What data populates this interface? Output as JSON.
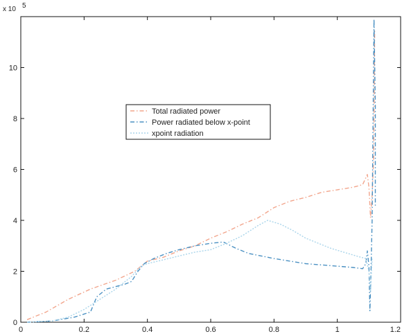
{
  "chart_data": {
    "type": "line",
    "title": "",
    "xlabel": "",
    "ylabel": "",
    "y_exponent_label": "x 10",
    "y_exponent_power": "5",
    "xlim": [
      0,
      1.2
    ],
    "ylim": [
      0,
      12
    ],
    "x_ticks": [
      {
        "value": 0,
        "label": "0"
      },
      {
        "value": 0.2,
        "label": "0.2"
      },
      {
        "value": 0.4,
        "label": "0.4"
      },
      {
        "value": 0.6,
        "label": "0.6"
      },
      {
        "value": 0.8,
        "label": "0.8"
      },
      {
        "value": 1.0,
        "label": "1"
      },
      {
        "value": 1.2,
        "label": "1.2"
      }
    ],
    "y_ticks": [
      {
        "value": 0,
        "label": "0"
      },
      {
        "value": 2,
        "label": "2"
      },
      {
        "value": 4,
        "label": "4"
      },
      {
        "value": 6,
        "label": "6"
      },
      {
        "value": 8,
        "label": "8"
      },
      {
        "value": 10,
        "label": "10"
      }
    ],
    "grid": false,
    "legend_position": "center-left",
    "series": [
      {
        "name": "Total radiated power",
        "color": "#f2a58c",
        "dash": "6,3,1.5,3",
        "points": [
          [
            0.02,
            0.1
          ],
          [
            0.08,
            0.4
          ],
          [
            0.15,
            0.9
          ],
          [
            0.22,
            1.3
          ],
          [
            0.3,
            1.65
          ],
          [
            0.36,
            2.0
          ],
          [
            0.4,
            2.4
          ],
          [
            0.45,
            2.55
          ],
          [
            0.5,
            2.8
          ],
          [
            0.55,
            3.0
          ],
          [
            0.6,
            3.3
          ],
          [
            0.65,
            3.55
          ],
          [
            0.7,
            3.85
          ],
          [
            0.75,
            4.1
          ],
          [
            0.8,
            4.5
          ],
          [
            0.85,
            4.75
          ],
          [
            0.9,
            4.9
          ],
          [
            0.95,
            5.1
          ],
          [
            1.0,
            5.2
          ],
          [
            1.05,
            5.3
          ],
          [
            1.08,
            5.4
          ],
          [
            1.095,
            5.8
          ],
          [
            1.1,
            5.3
          ],
          [
            1.105,
            4.1
          ],
          [
            1.11,
            5.0
          ],
          [
            1.115,
            6.5
          ],
          [
            1.118,
            11.5
          ]
        ]
      },
      {
        "name": "Power radiated below x-point",
        "color": "#4a90c2",
        "dash": "6,3,1.5,3",
        "points": [
          [
            0.02,
            0.0
          ],
          [
            0.1,
            0.05
          ],
          [
            0.17,
            0.2
          ],
          [
            0.22,
            0.4
          ],
          [
            0.24,
            1.0
          ],
          [
            0.27,
            1.3
          ],
          [
            0.3,
            1.4
          ],
          [
            0.33,
            1.5
          ],
          [
            0.35,
            1.6
          ],
          [
            0.37,
            2.0
          ],
          [
            0.39,
            2.3
          ],
          [
            0.42,
            2.5
          ],
          [
            0.46,
            2.7
          ],
          [
            0.5,
            2.85
          ],
          [
            0.55,
            3.0
          ],
          [
            0.6,
            3.1
          ],
          [
            0.64,
            3.15
          ],
          [
            0.68,
            2.9
          ],
          [
            0.72,
            2.7
          ],
          [
            0.76,
            2.6
          ],
          [
            0.8,
            2.5
          ],
          [
            0.85,
            2.4
          ],
          [
            0.9,
            2.3
          ],
          [
            0.95,
            2.25
          ],
          [
            1.0,
            2.2
          ],
          [
            1.05,
            2.15
          ],
          [
            1.08,
            2.1
          ],
          [
            1.09,
            2.3
          ],
          [
            1.095,
            2.8
          ],
          [
            1.1,
            2.2
          ],
          [
            1.103,
            0.45
          ],
          [
            1.106,
            1.8
          ],
          [
            1.11,
            4.0
          ],
          [
            1.113,
            8.0
          ],
          [
            1.116,
            11.9
          ],
          [
            1.12,
            8.5
          ],
          [
            1.12,
            4.5
          ]
        ]
      },
      {
        "name": "xpoint radiation",
        "color": "#a8d4ea",
        "dash": "2,2",
        "points": [
          [
            0.02,
            0.0
          ],
          [
            0.1,
            0.05
          ],
          [
            0.15,
            0.2
          ],
          [
            0.2,
            0.5
          ],
          [
            0.25,
            0.9
          ],
          [
            0.3,
            1.3
          ],
          [
            0.35,
            1.8
          ],
          [
            0.38,
            2.2
          ],
          [
            0.4,
            2.3
          ],
          [
            0.45,
            2.45
          ],
          [
            0.5,
            2.6
          ],
          [
            0.55,
            2.75
          ],
          [
            0.6,
            2.85
          ],
          [
            0.65,
            3.1
          ],
          [
            0.7,
            3.4
          ],
          [
            0.75,
            3.8
          ],
          [
            0.78,
            4.0
          ],
          [
            0.82,
            3.85
          ],
          [
            0.86,
            3.6
          ],
          [
            0.9,
            3.3
          ],
          [
            0.94,
            3.1
          ],
          [
            0.98,
            2.9
          ],
          [
            1.02,
            2.75
          ],
          [
            1.06,
            2.6
          ],
          [
            1.09,
            2.5
          ],
          [
            1.1,
            2.0
          ],
          [
            1.105,
            1.2
          ],
          [
            1.11,
            2.5
          ]
        ]
      }
    ]
  }
}
